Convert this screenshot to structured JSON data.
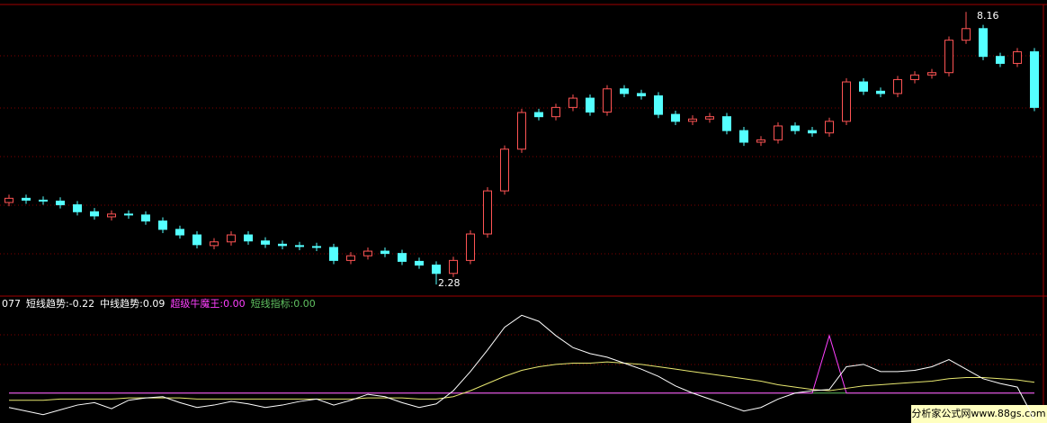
{
  "chart_data": [
    {
      "type": "candlestick",
      "open": [
        4.05,
        4.14,
        4.1,
        4.08,
        4.0,
        3.85,
        3.74,
        3.8,
        3.78,
        3.65,
        3.47,
        3.35,
        3.12,
        3.2,
        3.35,
        3.22,
        3.15,
        3.12,
        3.1,
        3.08,
        2.8,
        2.9,
        3.0,
        2.95,
        2.78,
        2.7,
        2.52,
        2.8,
        3.37,
        4.3,
        5.2,
        5.99,
        5.9,
        6.1,
        6.3,
        6.0,
        6.5,
        6.4,
        6.35,
        5.95,
        5.8,
        5.85,
        5.9,
        5.6,
        5.35,
        5.4,
        5.7,
        5.6,
        5.55,
        5.8,
        6.65,
        6.45,
        6.4,
        6.7,
        6.8,
        6.85,
        7.55,
        7.8,
        7.2,
        7.05,
        7.3
      ],
      "high": [
        4.22,
        4.22,
        4.18,
        4.16,
        4.08,
        3.93,
        3.88,
        3.88,
        3.86,
        3.73,
        3.55,
        3.43,
        3.28,
        3.43,
        3.43,
        3.3,
        3.23,
        3.2,
        3.18,
        3.16,
        2.98,
        3.08,
        3.08,
        3.03,
        2.86,
        2.78,
        2.88,
        3.45,
        4.38,
        5.28,
        6.07,
        6.07,
        6.18,
        6.38,
        6.38,
        6.58,
        6.58,
        6.48,
        6.43,
        6.03,
        5.93,
        5.98,
        5.98,
        5.68,
        5.48,
        5.78,
        5.78,
        5.68,
        5.88,
        6.73,
        6.73,
        6.53,
        6.78,
        6.88,
        6.93,
        7.63,
        8.16,
        7.88,
        7.28,
        7.38,
        7.38
      ],
      "low": [
        3.97,
        4.02,
        4.0,
        3.92,
        3.77,
        3.68,
        3.66,
        3.7,
        3.57,
        3.39,
        3.27,
        3.06,
        3.04,
        3.12,
        3.14,
        3.07,
        3.04,
        3.02,
        3.0,
        2.72,
        2.72,
        2.82,
        2.87,
        2.7,
        2.62,
        2.28,
        2.44,
        2.72,
        3.29,
        4.22,
        5.12,
        5.82,
        5.82,
        6.02,
        5.92,
        5.92,
        6.32,
        6.27,
        5.87,
        5.72,
        5.72,
        5.77,
        5.52,
        5.27,
        5.27,
        5.32,
        5.52,
        5.47,
        5.47,
        5.72,
        6.37,
        6.32,
        6.32,
        6.62,
        6.72,
        6.77,
        7.47,
        7.12,
        6.97,
        6.97,
        6.02
      ],
      "close": [
        4.14,
        4.1,
        4.08,
        4.0,
        3.85,
        3.76,
        3.8,
        3.78,
        3.65,
        3.47,
        3.35,
        3.14,
        3.2,
        3.35,
        3.22,
        3.15,
        3.12,
        3.1,
        3.08,
        2.8,
        2.9,
        3.0,
        2.95,
        2.78,
        2.7,
        2.52,
        2.8,
        3.37,
        4.3,
        5.2,
        5.99,
        5.9,
        6.1,
        6.3,
        6.0,
        6.5,
        6.4,
        6.35,
        5.95,
        5.8,
        5.85,
        5.9,
        5.6,
        5.35,
        5.4,
        5.7,
        5.6,
        5.55,
        5.8,
        6.65,
        6.45,
        6.4,
        6.7,
        6.8,
        6.85,
        7.55,
        7.8,
        7.2,
        7.05,
        7.3,
        6.1
      ],
      "up_color": "#ff5454",
      "down_color": "#54ffff",
      "ylim": [
        2.05,
        8.32
      ],
      "annotations": [
        "8.16",
        "2.28"
      ]
    },
    {
      "type": "line",
      "header_fragment": "077",
      "ylim": [
        -0.25,
        0.69
      ],
      "series": [
        {
          "name": "短线趋势:-0.22",
          "color": "#ffffff",
          "label_color": "#ffffff",
          "values": [
            -0.12,
            -0.15,
            -0.18,
            -0.14,
            -0.1,
            -0.08,
            -0.13,
            -0.06,
            -0.04,
            -0.03,
            -0.08,
            -0.12,
            -0.1,
            -0.07,
            -0.09,
            -0.12,
            -0.1,
            -0.07,
            -0.05,
            -0.1,
            -0.06,
            -0.01,
            -0.03,
            -0.08,
            -0.12,
            -0.09,
            0.02,
            0.18,
            0.36,
            0.55,
            0.65,
            0.6,
            0.48,
            0.38,
            0.33,
            0.3,
            0.25,
            0.2,
            0.14,
            0.06,
            0.0,
            -0.05,
            -0.1,
            -0.15,
            -0.12,
            -0.05,
            0.0,
            0.02,
            0.03,
            0.22,
            0.24,
            0.18,
            0.18,
            0.19,
            0.22,
            0.28,
            0.2,
            0.12,
            0.08,
            0.05,
            -0.22
          ]
        },
        {
          "name": "中线趋势:0.09",
          "color": "#e8e870",
          "label_color": "#ffffff",
          "values": [
            -0.06,
            -0.06,
            -0.06,
            -0.05,
            -0.05,
            -0.05,
            -0.05,
            -0.04,
            -0.04,
            -0.04,
            -0.04,
            -0.05,
            -0.05,
            -0.05,
            -0.05,
            -0.05,
            -0.05,
            -0.05,
            -0.05,
            -0.05,
            -0.05,
            -0.04,
            -0.04,
            -0.04,
            -0.05,
            -0.05,
            -0.03,
            0.02,
            0.08,
            0.14,
            0.19,
            0.22,
            0.24,
            0.25,
            0.25,
            0.26,
            0.25,
            0.24,
            0.22,
            0.2,
            0.18,
            0.16,
            0.14,
            0.12,
            0.1,
            0.07,
            0.05,
            0.03,
            0.02,
            0.04,
            0.06,
            0.07,
            0.08,
            0.09,
            0.1,
            0.12,
            0.13,
            0.13,
            0.12,
            0.11,
            0.09
          ]
        },
        {
          "name": "超级牛魔王:0.00",
          "color": "#ff40ff",
          "label_color": "#ff40ff",
          "values": [
            0,
            0,
            0,
            0,
            0,
            0,
            0,
            0,
            0,
            0,
            0,
            0,
            0,
            0,
            0,
            0,
            0,
            0,
            0,
            0,
            0,
            0,
            0,
            0,
            0,
            0,
            0,
            0,
            0,
            0,
            0,
            0,
            0,
            0,
            0,
            0,
            0,
            0,
            0,
            0,
            0,
            0,
            0,
            0,
            0,
            0,
            0,
            0,
            0.48,
            0,
            0,
            0,
            0,
            0,
            0,
            0,
            0,
            0,
            0,
            0,
            0
          ]
        },
        {
          "name": "短线指标:0.00",
          "color": "#60c060",
          "label_color": "#60c060",
          "values": [
            0,
            0,
            0,
            0,
            0,
            0,
            0,
            0,
            0,
            0,
            0,
            0,
            0,
            0,
            0,
            0,
            0,
            0,
            0,
            0,
            0,
            0,
            0,
            0,
            0,
            0,
            0,
            0,
            0,
            0,
            0,
            0,
            0,
            0,
            0,
            0,
            0,
            0,
            0,
            0,
            0,
            0,
            0,
            0,
            0,
            0,
            0,
            0,
            0,
            0,
            0,
            0,
            0,
            0,
            0,
            0,
            0,
            0,
            0,
            0,
            0
          ]
        }
      ]
    }
  ],
  "watermark": "分析家公式网www.88gs.com"
}
